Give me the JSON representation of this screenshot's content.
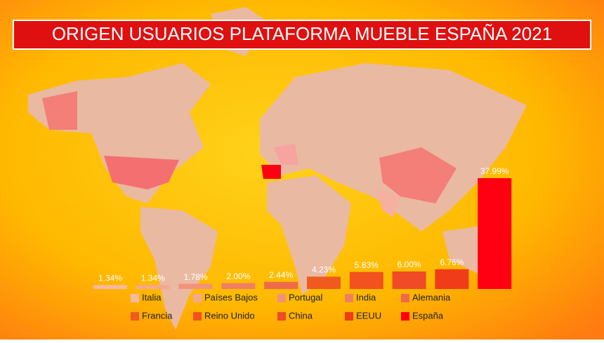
{
  "chart_data": {
    "type": "bar",
    "title": "ORIGEN USUARIOS PLATAFORMA MUEBLE ESPAÑA 2021",
    "categories": [
      "Italia",
      "Países Bajos",
      "Portugal",
      "India",
      "Alemania",
      "Francia",
      "Reino Unido",
      "China",
      "EEUU",
      "España"
    ],
    "values": [
      1.34,
      1.34,
      1.78,
      2.0,
      2.44,
      4.23,
      5.83,
      6.0,
      6.76,
      37.99
    ],
    "value_labels": [
      "1.34%",
      "1.34%",
      "1.78%",
      "2.00%",
      "2.44%",
      "4.23%",
      "5.83%",
      "6.00%",
      "6.76%",
      "37.99%"
    ],
    "colors": [
      "#f6b9a2",
      "#f5a88e",
      "#f3927a",
      "#f07f62",
      "#ee6a48",
      "#f05a1e",
      "#f2521e",
      "#f04a26",
      "#f03c18",
      "#ff0012"
    ]
  }
}
